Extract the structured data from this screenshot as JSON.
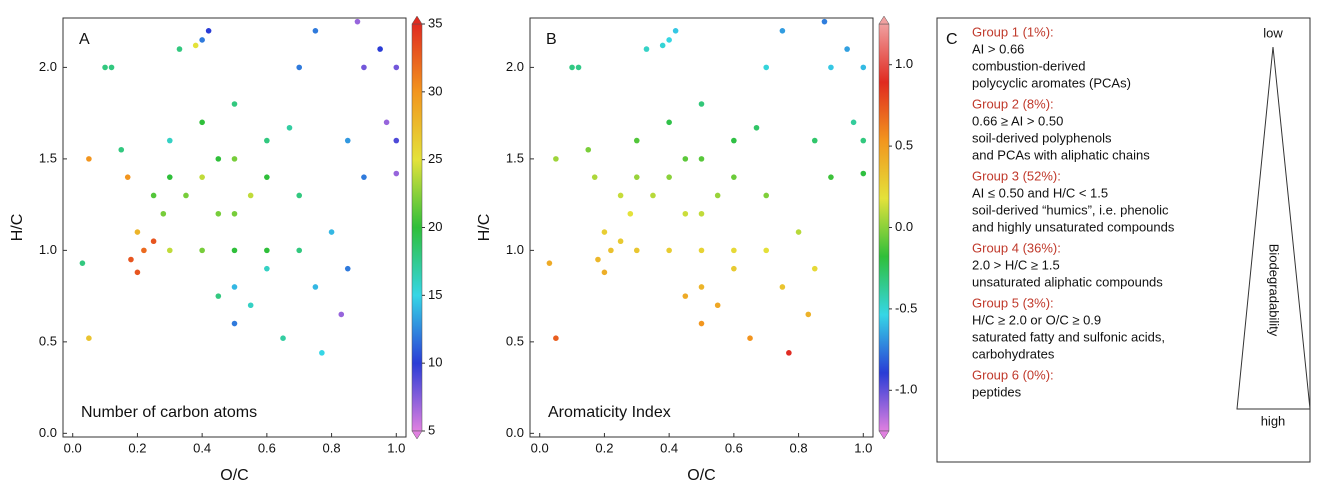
{
  "chart_data": [
    {
      "type": "scatter",
      "label": "A",
      "annotation": "Number of carbon atoms",
      "x_label": "O/C",
      "y_label": "H/C",
      "x": [
        0.05,
        0.05,
        0.03,
        0.1,
        0.12,
        0.15,
        0.17,
        0.18,
        0.2,
        0.22,
        0.25,
        0.28,
        0.3,
        0.33,
        0.38,
        0.4,
        0.42,
        0.4,
        0.45,
        0.5,
        0.5,
        0.55,
        0.6,
        0.5,
        0.35,
        0.45,
        0.5,
        0.5,
        0.6,
        0.65,
        0.67,
        0.7,
        0.75,
        0.77,
        0.8,
        0.85,
        0.83,
        0.9,
        0.9,
        0.95,
        1.0,
        1.0,
        1.0,
        0.97,
        0.88,
        0.3,
        0.4,
        0.6,
        0.7,
        0.5,
        0.4,
        0.6,
        0.3,
        0.25,
        0.7,
        0.45,
        0.55,
        0.75,
        0.85,
        0.2
      ],
      "y": [
        1.5,
        0.52,
        0.93,
        2.0,
        2.0,
        1.55,
        1.4,
        0.95,
        0.88,
        1.0,
        1.05,
        1.2,
        1.6,
        2.1,
        2.12,
        2.15,
        2.2,
        1.7,
        1.5,
        1.5,
        1.0,
        1.3,
        1.4,
        1.8,
        1.3,
        1.2,
        0.6,
        0.8,
        0.9,
        0.52,
        1.67,
        2.0,
        2.2,
        0.44,
        1.1,
        1.6,
        0.65,
        2.0,
        1.4,
        2.1,
        2.0,
        1.6,
        1.42,
        1.7,
        2.25,
        1.0,
        1.0,
        1.0,
        1.0,
        1.2,
        1.4,
        1.6,
        1.4,
        1.3,
        1.3,
        0.75,
        0.7,
        0.8,
        0.9,
        1.1
      ],
      "color_values": [
        30,
        27,
        18,
        18,
        18,
        18,
        30,
        33,
        33,
        32,
        33,
        22,
        16,
        18,
        25,
        12,
        10,
        20,
        20,
        22,
        20,
        24,
        20,
        18,
        22,
        22,
        12,
        14,
        16,
        17,
        17,
        12,
        12,
        15,
        14,
        13,
        7,
        8,
        12,
        10,
        8,
        9,
        7,
        7,
        7,
        24,
        22,
        20,
        18,
        22,
        24,
        18,
        20,
        21,
        18,
        18,
        16,
        14,
        12,
        28
      ],
      "colorscale": [
        "#e080e0",
        "#2a3cd6",
        "#36d6e6",
        "#2fbf3a",
        "#e4e23a",
        "#f2951e",
        "#e02a20"
      ],
      "clim": [
        5,
        35
      ],
      "cticks": [
        5,
        10,
        15,
        20,
        25,
        30,
        35
      ],
      "xlim": [
        -0.03,
        1.03
      ],
      "ylim": [
        -0.02,
        2.27
      ],
      "xticks": [
        {
          "value": 0,
          "label": "0.0"
        },
        0.2,
        0.4,
        0.6,
        0.8,
        {
          "value": 1,
          "label": "1.0"
        }
      ],
      "yticks": [
        {
          "value": 0,
          "label": "0.0"
        },
        0.5,
        {
          "value": 1,
          "label": "1.0"
        },
        1.5,
        {
          "value": 2,
          "label": "2.0"
        }
      ]
    },
    {
      "type": "scatter",
      "label": "B",
      "annotation": "Aromaticity Index",
      "x_label": "O/C",
      "y_label": "H/C",
      "x": [
        0.05,
        0.05,
        0.03,
        0.1,
        0.12,
        0.15,
        0.17,
        0.18,
        0.2,
        0.22,
        0.25,
        0.28,
        0.3,
        0.33,
        0.38,
        0.4,
        0.42,
        0.4,
        0.45,
        0.5,
        0.5,
        0.55,
        0.6,
        0.5,
        0.35,
        0.45,
        0.5,
        0.5,
        0.6,
        0.65,
        0.67,
        0.7,
        0.75,
        0.77,
        0.8,
        0.85,
        0.83,
        0.9,
        0.9,
        0.95,
        1.0,
        1.0,
        1.0,
        0.97,
        0.88,
        0.3,
        0.4,
        0.6,
        0.7,
        0.5,
        0.4,
        0.6,
        0.3,
        0.25,
        0.7,
        0.45,
        0.55,
        0.75,
        0.85,
        0.2
      ],
      "y": [
        1.5,
        0.52,
        0.93,
        2.0,
        2.0,
        1.55,
        1.4,
        0.95,
        0.88,
        1.0,
        1.05,
        1.2,
        1.6,
        2.1,
        2.12,
        2.15,
        2.2,
        1.7,
        1.5,
        1.5,
        1.0,
        1.3,
        1.4,
        1.8,
        1.3,
        1.2,
        0.6,
        0.8,
        0.9,
        0.52,
        1.67,
        2.0,
        2.2,
        0.44,
        1.1,
        1.6,
        0.65,
        2.0,
        1.4,
        2.1,
        2.0,
        1.6,
        1.42,
        1.7,
        2.25,
        1.0,
        1.0,
        1.0,
        1.0,
        1.2,
        1.4,
        1.6,
        1.4,
        1.3,
        1.3,
        0.75,
        0.7,
        0.8,
        0.9,
        1.1
      ],
      "color_values": [
        0.04,
        0.72,
        0.44,
        -0.33,
        -0.34,
        -0.03,
        0.07,
        0.38,
        0.42,
        0.33,
        0.29,
        0.18,
        -0.11,
        -0.47,
        -0.5,
        -0.53,
        -0.57,
        -0.21,
        -0.09,
        -0.1,
        0.25,
        0.03,
        -0.06,
        -0.31,
        0.09,
        0.13,
        0.53,
        0.39,
        0.29,
        0.54,
        -0.27,
        -0.51,
        -0.67,
        0.9,
        0.09,
        -0.28,
        0.4,
        -0.57,
        -0.15,
        -0.66,
        -0.6,
        -0.32,
        -0.19,
        -0.38,
        -0.74,
        0.31,
        0.28,
        0.22,
        0.19,
        0.11,
        0.0,
        -0.2,
        0.03,
        0.12,
        -0.02,
        0.44,
        0.45,
        0.32,
        0.22,
        0.27
      ],
      "colorscale": [
        "#e080e0",
        "#2a3cd6",
        "#36d6e6",
        "#2fbf3a",
        "#e4e23a",
        "#f2951e",
        "#e02a20",
        "#f0a0a0"
      ],
      "clim": [
        -1.25,
        1.25
      ],
      "cticks": [
        {
          "value": -1,
          "label": "-1.0"
        },
        -0.5,
        {
          "value": 0,
          "label": "0.0"
        },
        0.5,
        {
          "value": 1,
          "label": "1.0"
        }
      ],
      "xlim": [
        -0.03,
        1.03
      ],
      "ylim": [
        -0.02,
        2.27
      ],
      "xticks": [
        {
          "value": 0,
          "label": "0.0"
        },
        0.2,
        0.4,
        0.6,
        0.8,
        {
          "value": 1,
          "label": "1.0"
        }
      ],
      "yticks": [
        {
          "value": 0,
          "label": "0.0"
        },
        0.5,
        {
          "value": 1,
          "label": "1.0"
        },
        1.5,
        {
          "value": 2,
          "label": "2.0"
        }
      ]
    }
  ],
  "panel_c": {
    "label": "C",
    "groups": [
      {
        "title": "Group 1 (1%):",
        "lines": [
          "AI > 0.66",
          "combustion-derived",
          "polycyclic aromates (PCAs)"
        ]
      },
      {
        "title": "Group 2 (8%):",
        "lines": [
          "0.66 ≥ AI > 0.50",
          "soil-derived polyphenols",
          "and PCAs with aliphatic chains"
        ]
      },
      {
        "title": "Group 3 (52%):",
        "lines": [
          "AI ≤ 0.50 and H/C < 1.5",
          "soil-derived “humics”, i.e. phenolic",
          "and highly unsaturated compounds"
        ]
      },
      {
        "title": "Group 4 (36%):",
        "lines": [
          "2.0 > H/C ≥ 1.5",
          "unsaturated aliphatic compounds"
        ]
      },
      {
        "title": "Group 5 (3%):",
        "lines": [
          "H/C ≥ 2.0 or O/C ≥ 0.9",
          "saturated fatty and sulfonic acids,",
          "carbohydrates"
        ]
      },
      {
        "title": "Group 6 (0%):",
        "lines": [
          "peptides"
        ]
      }
    ],
    "arrow_top": "low",
    "arrow_bottom": "high",
    "arrow_label": "Biodegradability"
  }
}
